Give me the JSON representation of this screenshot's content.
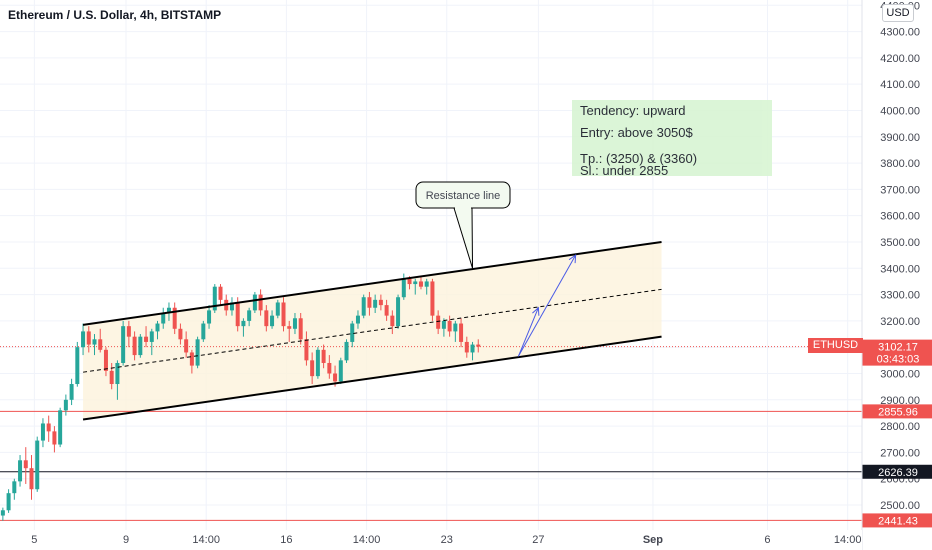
{
  "header": {
    "title": "Ethereum / U.S. Dollar, 4h, BITSTAMP",
    "currency": "USD"
  },
  "colors": {
    "up": "#26a69a",
    "down": "#ef5350",
    "channel_fill": "#fdf3dc",
    "note_fill": "#d8f5d3",
    "support": "#ef5350",
    "black_level": "#131722",
    "arrow": "#4a5be6"
  },
  "annotations": {
    "note": {
      "line1": "Tendency: upward",
      "line2": "Entry: above 3050$",
      "line3": "Tp.: (3250) & (3360)",
      "line4": "Sl.: under 2855"
    },
    "callout": "Resistance line"
  },
  "symbol": "ETHUSD",
  "chart_data": {
    "type": "candlestick",
    "title": "Ethereum / U.S. Dollar, 4h, BITSTAMP",
    "x_ticks": [
      {
        "label": "5",
        "t": 5.5
      },
      {
        "label": "9",
        "t": 21.5
      },
      {
        "label": "14:00",
        "t": 35.5
      },
      {
        "label": "16",
        "t": 49.5
      },
      {
        "label": "14:00",
        "t": 63.5
      },
      {
        "label": "23",
        "t": 77.5
      },
      {
        "label": "27",
        "t": 93.5
      },
      {
        "label": "Sep",
        "t": 113.5
      },
      {
        "label": "6",
        "t": 133.5
      },
      {
        "label": "14:00",
        "t": 147.5
      }
    ],
    "y_ticks": [
      2500,
      2600,
      2700,
      2800,
      2900,
      3000,
      3100,
      3200,
      3300,
      3400,
      3500,
      3600,
      3700,
      3800,
      3900,
      4000,
      4100,
      4200,
      4300,
      4400
    ],
    "ylim": [
      2405,
      4420
    ],
    "xlim": [
      -0.5,
      150
    ],
    "price_labels": [
      {
        "value": "3102.17",
        "price": 3102.17,
        "countdown": "03:43:03",
        "style": "red"
      },
      {
        "value": "2855.96",
        "price": 2855.96,
        "style": "red"
      },
      {
        "value": "2626.39",
        "price": 2626.39,
        "style": "black"
      },
      {
        "value": "2441.43",
        "price": 2441.43,
        "style": "red"
      }
    ],
    "hlines": [
      {
        "price": 3102.17,
        "style": "dotted-red"
      },
      {
        "price": 2855.96,
        "style": "red"
      },
      {
        "price": 2626.39,
        "style": "black"
      },
      {
        "price": 2441.43,
        "style": "red"
      }
    ],
    "channel": {
      "upper": [
        [
          14,
          3185
        ],
        [
          115,
          3500
        ]
      ],
      "lower": [
        [
          14,
          2825
        ],
        [
          115,
          3140
        ]
      ],
      "mid": [
        [
          14,
          3005
        ],
        [
          115,
          3320
        ]
      ]
    },
    "arrows": [
      {
        "from": [
          90,
          3065
        ],
        "to": [
          100,
          3450
        ]
      },
      {
        "from": [
          90,
          3065
        ],
        "to": [
          93.5,
          3250
        ]
      }
    ],
    "callout_pointer": [
      82,
      3400
    ],
    "candles": [
      [
        2460,
        2490,
        2440,
        2480
      ],
      [
        2480,
        2560,
        2470,
        2545
      ],
      [
        2545,
        2600,
        2520,
        2590
      ],
      [
        2590,
        2690,
        2570,
        2670
      ],
      [
        2670,
        2720,
        2580,
        2640
      ],
      [
        2640,
        2690,
        2520,
        2560
      ],
      [
        2560,
        2760,
        2550,
        2745
      ],
      [
        2745,
        2830,
        2720,
        2810
      ],
      [
        2810,
        2840,
        2740,
        2780
      ],
      [
        2780,
        2800,
        2700,
        2730
      ],
      [
        2730,
        2870,
        2720,
        2860
      ],
      [
        2860,
        2920,
        2840,
        2900
      ],
      [
        2900,
        2980,
        2880,
        2960
      ],
      [
        2960,
        3120,
        2950,
        3100
      ],
      [
        3100,
        3190,
        3070,
        3160
      ],
      [
        3160,
        3180,
        3080,
        3110
      ],
      [
        3110,
        3150,
        3070,
        3130
      ],
      [
        3130,
        3170,
        3080,
        3090
      ],
      [
        3090,
        3100,
        2990,
        3010
      ],
      [
        3010,
        3040,
        2940,
        2960
      ],
      [
        2960,
        3050,
        2900,
        3040
      ],
      [
        3040,
        3200,
        3030,
        3180
      ],
      [
        3180,
        3200,
        3100,
        3140
      ],
      [
        3140,
        3160,
        3050,
        3070
      ],
      [
        3070,
        3150,
        3060,
        3140
      ],
      [
        3140,
        3180,
        3100,
        3120
      ],
      [
        3120,
        3170,
        3070,
        3160
      ],
      [
        3160,
        3200,
        3130,
        3190
      ],
      [
        3190,
        3250,
        3170,
        3230
      ],
      [
        3230,
        3270,
        3200,
        3250
      ],
      [
        3250,
        3270,
        3150,
        3170
      ],
      [
        3170,
        3190,
        3110,
        3130
      ],
      [
        3130,
        3160,
        3060,
        3080
      ],
      [
        3080,
        3090,
        3000,
        3030
      ],
      [
        3030,
        3140,
        3020,
        3130
      ],
      [
        3130,
        3200,
        3120,
        3190
      ],
      [
        3190,
        3260,
        3170,
        3240
      ],
      [
        3240,
        3340,
        3230,
        3330
      ],
      [
        3330,
        3340,
        3260,
        3280
      ],
      [
        3280,
        3300,
        3220,
        3240
      ],
      [
        3240,
        3290,
        3220,
        3270
      ],
      [
        3270,
        3290,
        3160,
        3180
      ],
      [
        3180,
        3210,
        3140,
        3200
      ],
      [
        3200,
        3250,
        3180,
        3240
      ],
      [
        3240,
        3310,
        3230,
        3300
      ],
      [
        3300,
        3320,
        3220,
        3240
      ],
      [
        3240,
        3260,
        3160,
        3180
      ],
      [
        3180,
        3240,
        3170,
        3220
      ],
      [
        3220,
        3280,
        3210,
        3270
      ],
      [
        3270,
        3290,
        3160,
        3180
      ],
      [
        3180,
        3200,
        3120,
        3170
      ],
      [
        3170,
        3230,
        3150,
        3210
      ],
      [
        3210,
        3230,
        3110,
        3130
      ],
      [
        3130,
        3160,
        3030,
        3050
      ],
      [
        3050,
        3080,
        2960,
        2990
      ],
      [
        2990,
        3100,
        2980,
        3090
      ],
      [
        3090,
        3110,
        3020,
        3040
      ],
      [
        3040,
        3070,
        2980,
        3000
      ],
      [
        3000,
        3030,
        2950,
        2970
      ],
      [
        2970,
        3060,
        2960,
        3050
      ],
      [
        3050,
        3130,
        3040,
        3120
      ],
      [
        3120,
        3200,
        3100,
        3190
      ],
      [
        3190,
        3240,
        3170,
        3220
      ],
      [
        3220,
        3300,
        3210,
        3290
      ],
      [
        3290,
        3310,
        3220,
        3250
      ],
      [
        3250,
        3300,
        3230,
        3280
      ],
      [
        3280,
        3300,
        3240,
        3260
      ],
      [
        3260,
        3280,
        3200,
        3220
      ],
      [
        3220,
        3240,
        3150,
        3180
      ],
      [
        3180,
        3300,
        3170,
        3290
      ],
      [
        3290,
        3380,
        3280,
        3360
      ],
      [
        3360,
        3370,
        3320,
        3340
      ],
      [
        3340,
        3360,
        3300,
        3350
      ],
      [
        3350,
        3370,
        3320,
        3330
      ],
      [
        3330,
        3360,
        3300,
        3350
      ],
      [
        3350,
        3360,
        3200,
        3220
      ],
      [
        3220,
        3240,
        3150,
        3170
      ],
      [
        3170,
        3210,
        3140,
        3200
      ],
      [
        3200,
        3220,
        3140,
        3160
      ],
      [
        3160,
        3200,
        3120,
        3190
      ],
      [
        3190,
        3210,
        3100,
        3120
      ],
      [
        3120,
        3140,
        3060,
        3080
      ],
      [
        3080,
        3120,
        3050,
        3110
      ],
      [
        3110,
        3130,
        3080,
        3102
      ]
    ]
  }
}
